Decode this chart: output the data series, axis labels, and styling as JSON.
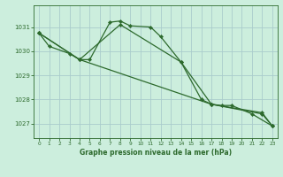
{
  "xlabel": "Graphe pression niveau de la mer (hPa)",
  "background_color": "#cceedd",
  "grid_color": "#aacccc",
  "line_color": "#2d6a2d",
  "xlim": [
    -0.5,
    23.5
  ],
  "ylim": [
    1026.4,
    1031.9
  ],
  "yticks": [
    1027,
    1028,
    1029,
    1030,
    1031
  ],
  "xticks": [
    0,
    1,
    2,
    3,
    4,
    5,
    6,
    7,
    8,
    9,
    10,
    11,
    12,
    13,
    14,
    15,
    16,
    17,
    18,
    19,
    20,
    21,
    22,
    23
  ],
  "s1x": [
    0,
    1,
    3,
    4,
    5,
    7,
    8,
    9,
    11,
    12,
    14,
    16,
    17,
    18,
    19,
    21,
    23
  ],
  "s1y": [
    1030.75,
    1030.2,
    1029.9,
    1029.65,
    1029.65,
    1031.2,
    1031.25,
    1031.05,
    1031.0,
    1030.6,
    1029.55,
    1028.0,
    1027.8,
    1027.75,
    1027.75,
    1027.4,
    1026.9
  ],
  "s2x": [
    0,
    4,
    8,
    14,
    17,
    22,
    23
  ],
  "s2y": [
    1030.75,
    1029.65,
    1031.1,
    1029.55,
    1027.8,
    1027.45,
    1026.9
  ],
  "s3x": [
    0,
    4,
    17,
    22,
    23
  ],
  "s3y": [
    1030.75,
    1029.65,
    1027.8,
    1027.4,
    1026.9
  ],
  "xlabel_fontsize": 5.5,
  "tick_fontsize": 5.0,
  "linewidth": 0.9,
  "markersize": 2.2
}
